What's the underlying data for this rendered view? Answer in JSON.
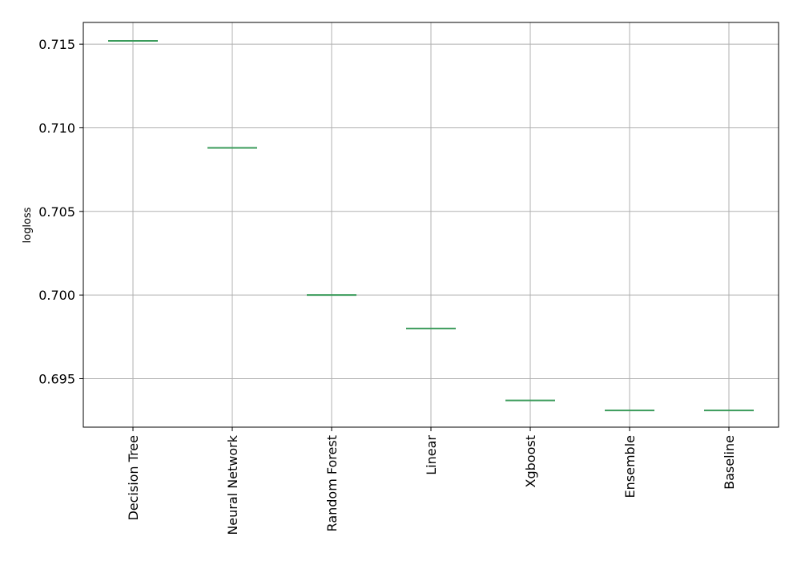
{
  "chart_data": {
    "type": "box",
    "categories": [
      "Decision Tree",
      "Neural Network",
      "Random Forest",
      "Linear",
      "Xgboost",
      "Ensemble",
      "Baseline"
    ],
    "values": [
      0.7152,
      0.7088,
      0.7,
      0.698,
      0.6937,
      0.6931,
      0.6931
    ],
    "title": "",
    "xlabel": "",
    "ylabel": "logloss",
    "ylim": [
      0.6921,
      0.7163
    ],
    "yticks": [
      0.695,
      0.7,
      0.705,
      0.71,
      0.715
    ],
    "ytick_labels": [
      "0.695",
      "0.700",
      "0.705",
      "0.710",
      "0.715"
    ],
    "grid": true,
    "box_color": "#3b9b5b",
    "grid_color": "#b0b0b0"
  }
}
